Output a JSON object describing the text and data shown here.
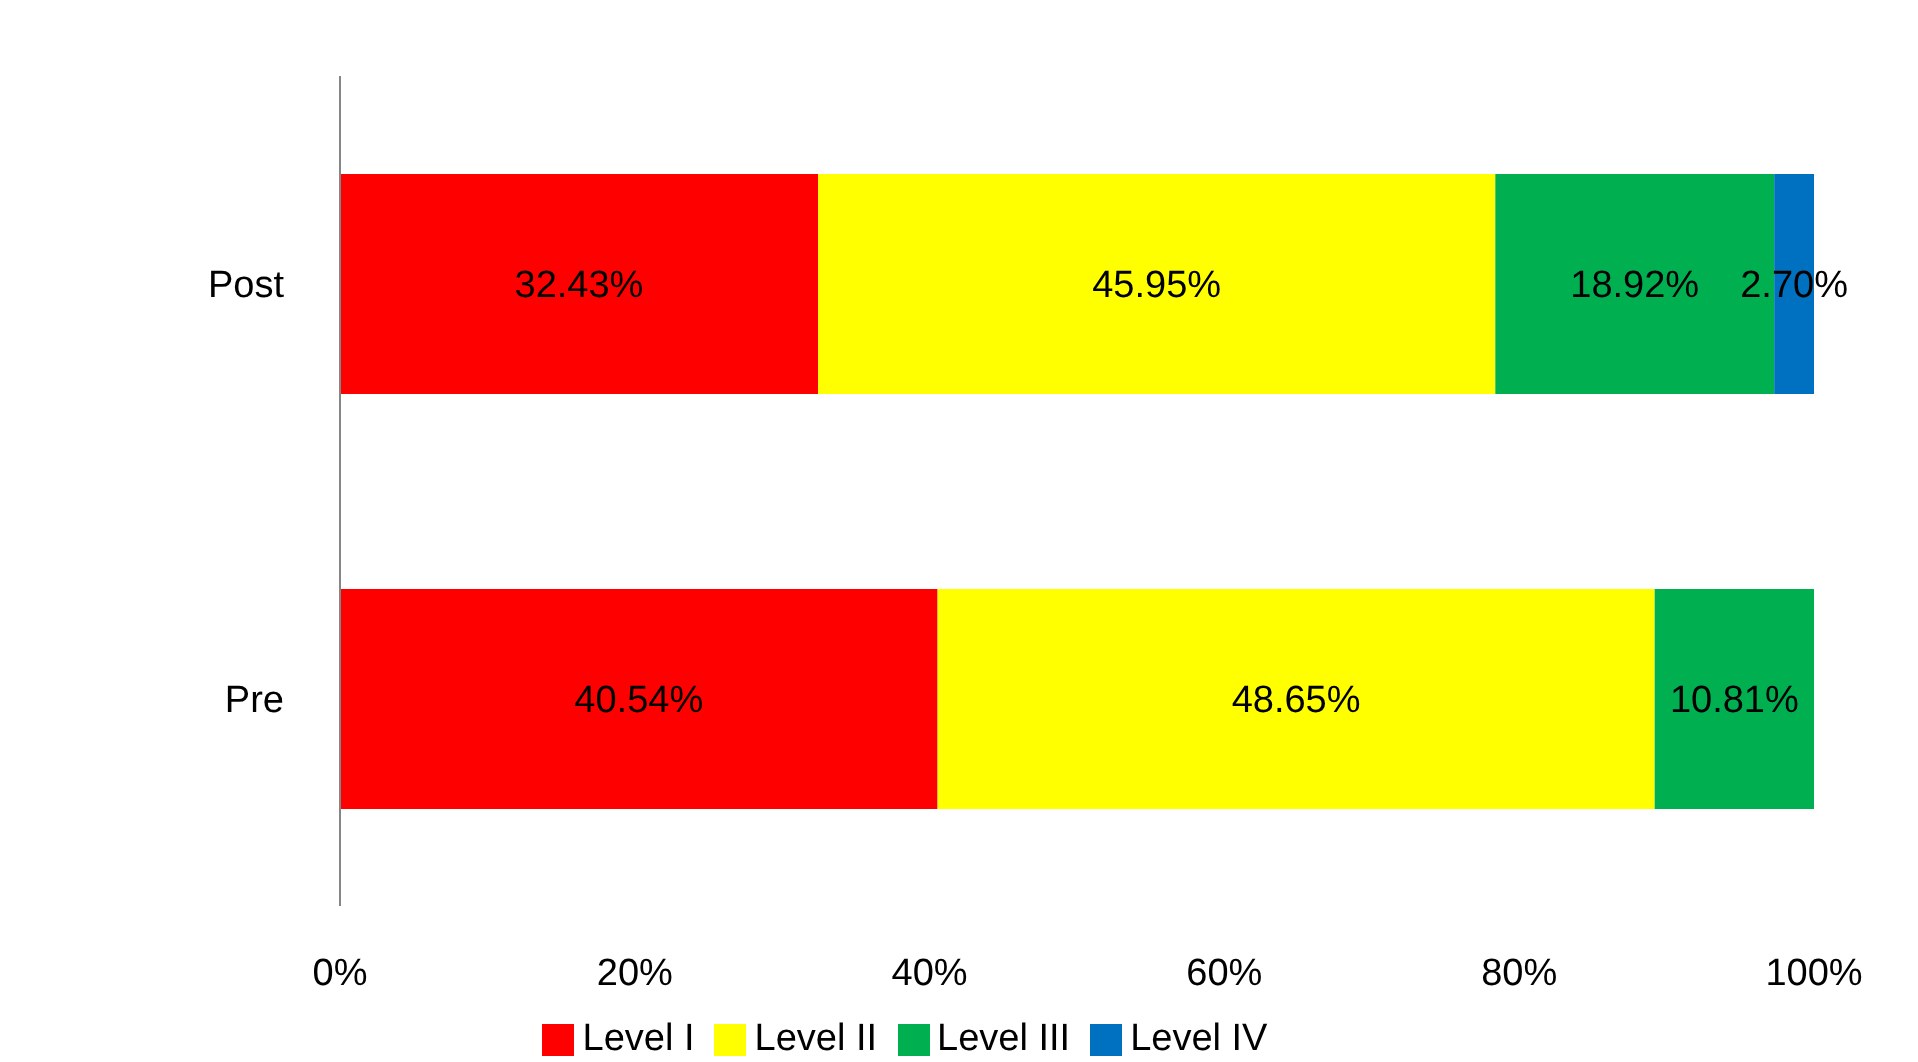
{
  "chart_data": {
    "type": "bar",
    "orientation": "horizontal",
    "stacked": true,
    "categories": [
      "Post",
      "Pre"
    ],
    "series": [
      {
        "name": "Level I",
        "color": "#ff0000",
        "values": [
          32.43,
          40.54
        ],
        "value_labels": [
          "32.43%",
          "40.54%"
        ]
      },
      {
        "name": "Level II",
        "color": "#ffff00",
        "values": [
          45.95,
          48.65
        ],
        "value_labels": [
          "45.95%",
          "48.65%"
        ]
      },
      {
        "name": "Level III",
        "color": "#00b050",
        "values": [
          18.92,
          10.81
        ],
        "value_labels": [
          "18.92%",
          "10.81%"
        ]
      },
      {
        "name": "Level IV",
        "color": "#0070c0",
        "values": [
          2.7,
          null
        ],
        "value_labels": [
          "2.70%",
          null
        ]
      }
    ],
    "xlim": [
      0,
      100
    ],
    "xticks": [
      {
        "value": 0,
        "label": "0%"
      },
      {
        "value": 20,
        "label": "20%"
      },
      {
        "value": 40,
        "label": "40%"
      },
      {
        "value": 60,
        "label": "60%"
      },
      {
        "value": 80,
        "label": "80%"
      },
      {
        "value": 100,
        "label": "100%"
      }
    ],
    "grid": false,
    "legend": "bottom"
  }
}
